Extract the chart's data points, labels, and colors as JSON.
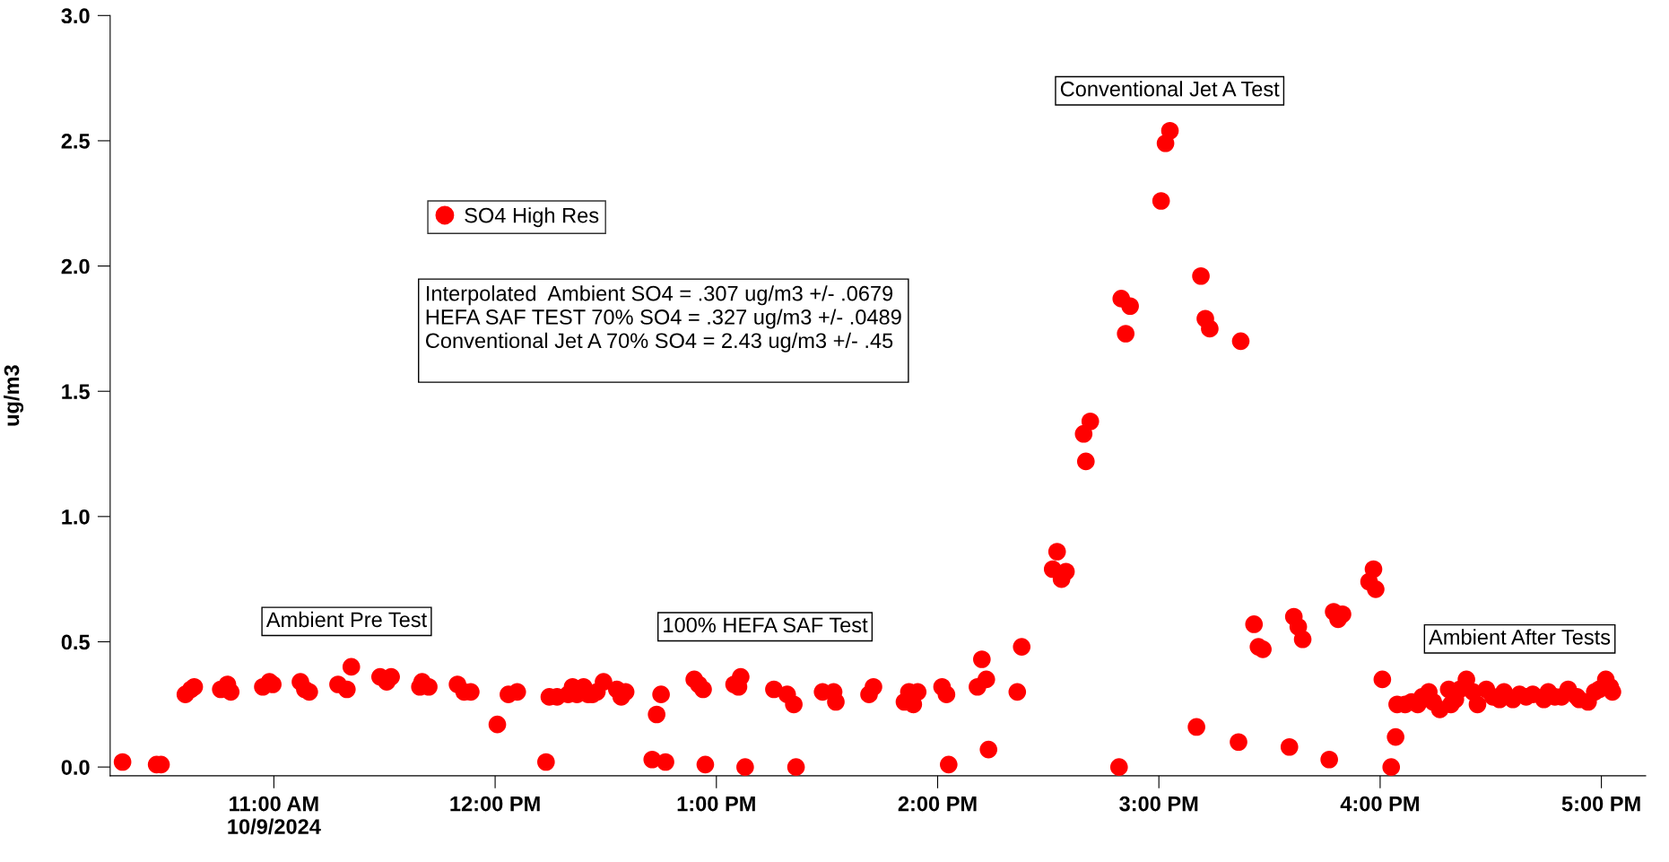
{
  "chart_data": {
    "type": "scatter",
    "ylabel": "ug/m3",
    "xlim": [
      10.26,
      17.2
    ],
    "ylim": [
      -0.035,
      3.0
    ],
    "xticks": [
      {
        "value": 11,
        "label": "11:00 AM\n10/9/2024"
      },
      {
        "value": 12,
        "label": "12:00 PM"
      },
      {
        "value": 13,
        "label": "1:00 PM"
      },
      {
        "value": 14,
        "label": "2:00 PM"
      },
      {
        "value": 15,
        "label": "3:00 PM"
      },
      {
        "value": 16,
        "label": "4:00 PM"
      },
      {
        "value": 17,
        "label": "5:00 PM"
      }
    ],
    "yticks": [
      {
        "value": 0,
        "label": "0.0"
      },
      {
        "value": 0.5,
        "label": "0.5"
      },
      {
        "value": 1,
        "label": "1.0"
      },
      {
        "value": 1.5,
        "label": "1.5"
      },
      {
        "value": 2,
        "label": "2.0"
      },
      {
        "value": 2.5,
        "label": "2.5"
      },
      {
        "value": 3,
        "label": "3.0"
      }
    ],
    "grid": false,
    "legend": "top left",
    "marker": "circle",
    "series": [
      {
        "name": "SO4 High Res",
        "color": "#ff0000",
        "x": [
          10.316,
          10.47,
          10.49,
          10.6,
          10.625,
          10.64,
          10.76,
          10.79,
          10.805,
          10.95,
          10.98,
          10.995,
          11.12,
          11.14,
          11.16,
          11.29,
          11.33,
          11.35,
          11.48,
          11.51,
          11.53,
          11.66,
          11.67,
          11.7,
          11.83,
          11.86,
          11.89,
          12.01,
          12.06,
          12.1,
          12.23,
          12.245,
          12.28,
          12.33,
          12.35,
          12.37,
          12.4,
          12.42,
          12.44,
          12.46,
          12.49,
          12.55,
          12.57,
          12.59,
          12.71,
          12.73,
          12.75,
          12.77,
          12.9,
          12.92,
          12.94,
          12.95,
          13.08,
          13.1,
          13.11,
          13.13,
          13.26,
          13.32,
          13.35,
          13.36,
          13.48,
          13.53,
          13.54,
          13.69,
          13.71,
          13.85,
          13.87,
          13.89,
          13.91,
          14.02,
          14.04,
          14.05,
          14.18,
          14.2,
          14.22,
          14.23,
          14.36,
          14.38,
          14.52,
          14.54,
          14.56,
          14.58,
          14.66,
          14.67,
          14.69,
          14.82,
          14.83,
          14.85,
          14.87,
          15.01,
          15.03,
          15.05,
          15.17,
          15.19,
          15.21,
          15.23,
          15.36,
          15.37,
          15.43,
          15.45,
          15.47,
          15.59,
          15.61,
          15.63,
          15.65,
          15.77,
          15.79,
          15.81,
          15.83,
          15.95,
          15.97,
          15.98,
          16.01,
          16.05,
          16.07,
          16.077,
          16.113,
          16.142,
          16.17,
          16.19,
          16.22,
          16.24,
          16.27,
          16.31,
          16.32,
          16.34,
          16.36,
          16.39,
          16.42,
          16.44,
          16.48,
          16.51,
          16.54,
          16.56,
          16.6,
          16.63,
          16.66,
          16.69,
          16.74,
          16.76,
          16.79,
          16.82,
          16.85,
          16.89,
          16.9,
          16.94,
          16.97,
          16.99,
          17.02,
          17.04,
          17.05
        ],
        "values": [
          0.02,
          0.01,
          0.01,
          0.29,
          0.31,
          0.32,
          0.31,
          0.33,
          0.3,
          0.32,
          0.34,
          0.33,
          0.34,
          0.31,
          0.3,
          0.33,
          0.31,
          0.4,
          0.36,
          0.34,
          0.36,
          0.32,
          0.34,
          0.32,
          0.33,
          0.3,
          0.3,
          0.17,
          0.29,
          0.3,
          0.02,
          0.28,
          0.28,
          0.29,
          0.32,
          0.29,
          0.32,
          0.29,
          0.29,
          0.3,
          0.34,
          0.31,
          0.28,
          0.3,
          0.03,
          0.21,
          0.29,
          0.02,
          0.35,
          0.33,
          0.31,
          0.01,
          0.33,
          0.32,
          0.36,
          0.0,
          0.31,
          0.29,
          0.25,
          0.0,
          0.3,
          0.3,
          0.26,
          0.29,
          0.32,
          0.26,
          0.3,
          0.25,
          0.3,
          0.32,
          0.29,
          0.01,
          0.32,
          0.43,
          0.35,
          0.07,
          0.3,
          0.48,
          0.79,
          0.86,
          0.75,
          0.78,
          1.33,
          1.22,
          1.38,
          0.0,
          1.87,
          1.73,
          1.84,
          2.26,
          2.49,
          2.54,
          0.16,
          1.96,
          1.79,
          1.75,
          0.1,
          1.7,
          0.57,
          0.48,
          0.47,
          0.08,
          0.6,
          0.56,
          0.51,
          0.03,
          0.62,
          0.59,
          0.61,
          0.74,
          0.79,
          0.71,
          0.35,
          0.0,
          0.12,
          0.25,
          0.25,
          0.26,
          0.25,
          0.28,
          0.3,
          0.26,
          0.23,
          0.31,
          0.25,
          0.27,
          0.31,
          0.35,
          0.3,
          0.25,
          0.31,
          0.28,
          0.27,
          0.3,
          0.27,
          0.29,
          0.28,
          0.29,
          0.27,
          0.3,
          0.28,
          0.28,
          0.31,
          0.28,
          0.27,
          0.26,
          0.3,
          0.31,
          0.35,
          0.32,
          0.3
        ]
      }
    ],
    "annotations": [
      "Ambient Pre Test",
      "100% HEFA SAF Test",
      "Conventional Jet A Test",
      "Ambient After Tests",
      "Interpolated  Ambient SO4 = .307 ug/m3 +/- .0679\nHEFA SAF TEST 70% SO4 = .327 ug/m3 +/- .0489\nConventional Jet A 70% SO4 = 2.43 ug/m3 +/- .45\n "
    ]
  }
}
